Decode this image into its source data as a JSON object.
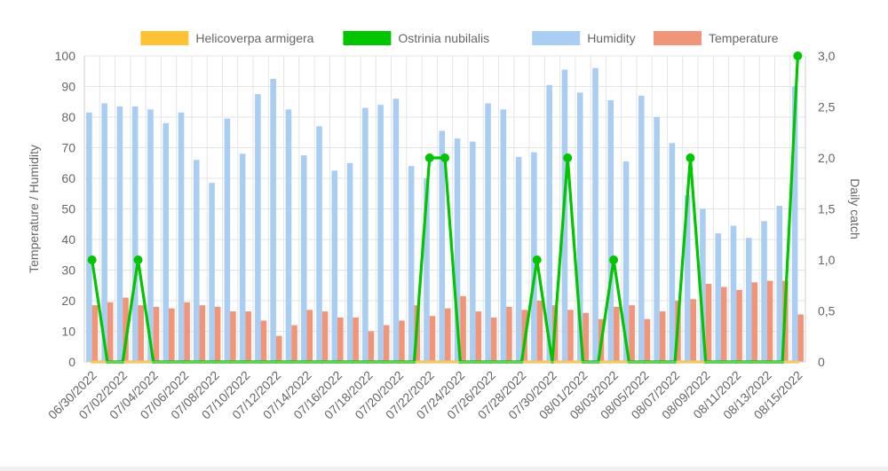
{
  "chart_data": {
    "type": "bar",
    "title": "",
    "dates": [
      "06/30/2022",
      "07/01/2022",
      "07/02/2022",
      "07/03/2022",
      "07/04/2022",
      "07/05/2022",
      "07/06/2022",
      "07/07/2022",
      "07/08/2022",
      "07/09/2022",
      "07/10/2022",
      "07/11/2022",
      "07/12/2022",
      "07/13/2022",
      "07/14/2022",
      "07/15/2022",
      "07/16/2022",
      "07/17/2022",
      "07/18/2022",
      "07/19/2022",
      "07/20/2022",
      "07/21/2022",
      "07/22/2022",
      "07/23/2022",
      "07/24/2022",
      "07/25/2022",
      "07/26/2022",
      "07/27/2022",
      "07/28/2022",
      "07/29/2022",
      "07/30/2022",
      "07/31/2022",
      "08/01/2022",
      "08/02/2022",
      "08/03/2022",
      "08/04/2022",
      "08/05/2022",
      "08/06/2022",
      "08/07/2022",
      "08/08/2022",
      "08/09/2022",
      "08/10/2022",
      "08/11/2022",
      "08/12/2022",
      "08/13/2022",
      "08/14/2022",
      "08/15/2022"
    ],
    "x_tick_labels": [
      "06/30/2022",
      "07/02/2022",
      "07/04/2022",
      "07/06/2022",
      "07/08/2022",
      "07/10/2022",
      "07/12/2022",
      "07/14/2022",
      "07/16/2022",
      "07/18/2022",
      "07/20/2022",
      "07/22/2022",
      "07/24/2022",
      "07/26/2022",
      "07/28/2022",
      "07/30/2022",
      "08/01/2022",
      "08/03/2022",
      "08/05/2022",
      "08/07/2022",
      "08/09/2022",
      "08/11/2022",
      "08/13/2022",
      "08/15/2022"
    ],
    "legend": {
      "position": "top",
      "items": [
        {
          "label": "Helicoverpa armigera",
          "color": "#ffc234"
        },
        {
          "label": "Ostrinia nubilalis",
          "color": "#00c600"
        },
        {
          "label": "Humidity",
          "color": "#a9cdf3"
        },
        {
          "label": "Temperature",
          "color": "#f29478"
        }
      ]
    },
    "y_left": {
      "title": "Temperature / Humidity",
      "min": 0,
      "max": 100,
      "ticks": [
        "0",
        "10",
        "20",
        "30",
        "40",
        "50",
        "60",
        "70",
        "80",
        "90",
        "100"
      ]
    },
    "y_right": {
      "title": "Daily catch",
      "min": 0,
      "max": 3,
      "ticks": [
        "0",
        "0,5",
        "1,0",
        "1,5",
        "2,0",
        "2,5",
        "3,0"
      ]
    },
    "grid": true,
    "series": [
      {
        "name": "Humidity",
        "type": "bar",
        "color": "#a9cdf3",
        "axis": "left",
        "values": [
          81.5,
          84.5,
          83.5,
          83.5,
          82.5,
          78,
          81.5,
          66,
          58.5,
          79.5,
          68,
          87.5,
          92.5,
          82.5,
          67.5,
          77,
          62.5,
          65,
          83,
          84,
          86,
          64,
          60,
          75.5,
          73,
          72,
          84.5,
          82.5,
          67,
          68.5,
          90.5,
          95.5,
          88,
          96,
          85.5,
          65.5,
          87,
          80,
          71.5,
          54.5,
          50,
          42,
          44.5,
          40.5,
          46,
          51,
          90
        ]
      },
      {
        "name": "Temperature",
        "type": "bar",
        "color": "#f29478",
        "axis": "left",
        "values": [
          18.5,
          19.5,
          21,
          18.5,
          18,
          17.5,
          19.5,
          18.5,
          18,
          16.5,
          16.5,
          13.5,
          8.5,
          12,
          17,
          16.5,
          14.5,
          14.5,
          10,
          12,
          13.5,
          18.5,
          15,
          17.5,
          21.5,
          16.5,
          14.5,
          18,
          17,
          20,
          18.5,
          17,
          16,
          14,
          18,
          18.5,
          14,
          16.5,
          20,
          20.5,
          25.5,
          24.5,
          23.5,
          26,
          26.5,
          26.5,
          15.5
        ]
      },
      {
        "name": "Ostrinia nubilalis",
        "type": "line",
        "color": "#00c600",
        "axis": "right",
        "values": [
          1,
          0,
          0,
          1,
          0,
          0,
          0,
          0,
          0,
          0,
          0,
          0,
          0,
          0,
          0,
          0,
          0,
          0,
          0,
          0,
          0,
          0,
          2,
          2,
          0,
          0,
          0,
          0,
          0,
          1,
          0,
          2,
          0,
          0,
          1,
          0,
          0,
          0,
          0,
          2,
          0,
          0,
          0,
          0,
          0,
          0,
          3
        ]
      },
      {
        "name": "Helicoverpa armigera",
        "type": "line",
        "color": "#ffc234",
        "axis": "right",
        "values": [
          0,
          0,
          0,
          0,
          0,
          0,
          0,
          0,
          0,
          0,
          0,
          0,
          0,
          0,
          0,
          0,
          0,
          0,
          0,
          0,
          0,
          0,
          0,
          0,
          0,
          0,
          0,
          0,
          0,
          0,
          0,
          0,
          0,
          0,
          0,
          0,
          0,
          0,
          0,
          0,
          0,
          0,
          0,
          0,
          0,
          0,
          0
        ]
      }
    ]
  }
}
